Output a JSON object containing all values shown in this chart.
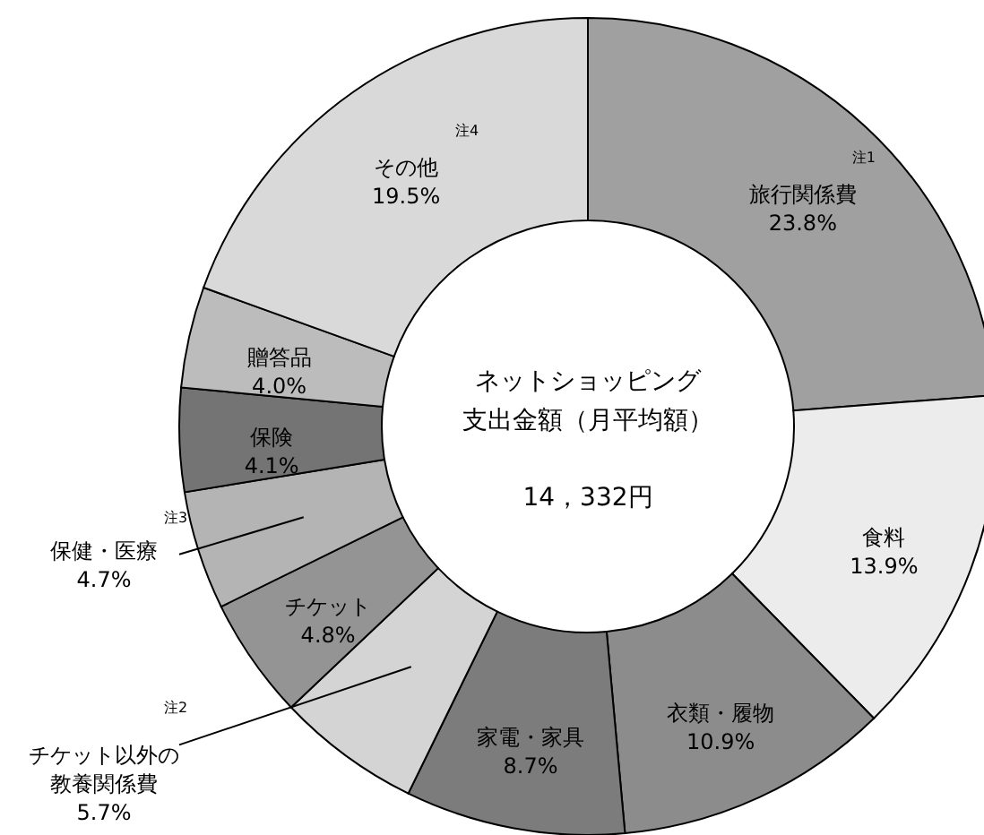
{
  "chart_data": {
    "type": "donut",
    "title": "ネットショッピング支出金額（月平均額）",
    "categories": [
      "旅行関係費",
      "食料",
      "衣類・履物",
      "家電・家具",
      "チケット以外の教養関係費",
      "チケット",
      "保健・医療",
      "保険",
      "贈答品",
      "その他"
    ],
    "values": [
      23.8,
      13.9,
      10.9,
      8.7,
      5.7,
      4.8,
      4.7,
      4.1,
      4.0,
      19.5
    ],
    "colors": [
      "#a0a0a0",
      "#ececec",
      "#8c8c8c",
      "#7c7c7c",
      "#d4d4d4",
      "#949494",
      "#b4b4b4",
      "#747474",
      "#bcbcbc",
      "#d9d9d9"
    ],
    "value_labels": [
      "23.8%",
      "13.9%",
      "10.9%",
      "8.7%",
      "5.7%",
      "4.8%",
      "4.7%",
      "4.1%",
      "4.0%",
      "19.5%"
    ],
    "annotations": [
      "14，332円",
      {
        "text": "注1",
        "x": "旅行関係費"
      },
      {
        "text": "注2",
        "x": "チケット以外の教養関係費"
      },
      {
        "text": "注3",
        "x": "保健・医療"
      },
      {
        "text": "注4",
        "x": "その他"
      }
    ]
  }
}
